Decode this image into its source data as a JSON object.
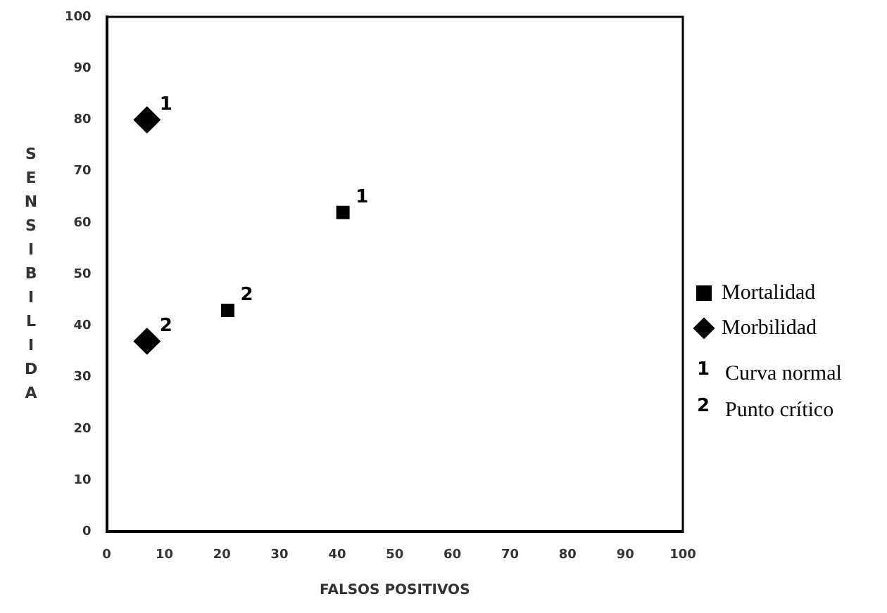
{
  "chart_data": {
    "type": "scatter",
    "xlabel": "FALSOS POSITIVOS",
    "ylabel": "SENSIBILIDA",
    "xlim": [
      0,
      100
    ],
    "xticks": [
      0,
      10,
      20,
      30,
      40,
      50,
      60,
      70,
      80,
      90,
      100
    ],
    "ylim": [
      0,
      100
    ],
    "yticks": [
      0,
      10,
      20,
      30,
      40,
      50,
      60,
      70,
      80,
      90,
      100
    ],
    "grid": false,
    "legend": "right",
    "series": [
      {
        "name": "Mortalidad",
        "color": "#000000",
        "marker": "square",
        "x": [
          41,
          21
        ],
        "values": [
          62,
          43
        ]
      },
      {
        "name": "Morbilidad",
        "color": "#000000",
        "marker": "diamond",
        "x": [
          7,
          7
        ],
        "values": [
          80,
          37
        ]
      }
    ],
    "annotations": [
      {
        "text": "1",
        "x": 41,
        "y": 62
      },
      {
        "text": "2",
        "x": 21,
        "y": 43
      },
      {
        "text": "1",
        "x": 7,
        "y": 80
      },
      {
        "text": "2",
        "x": 7,
        "y": 37
      },
      "1 Curva normal",
      "2 Punto crítico"
    ]
  }
}
